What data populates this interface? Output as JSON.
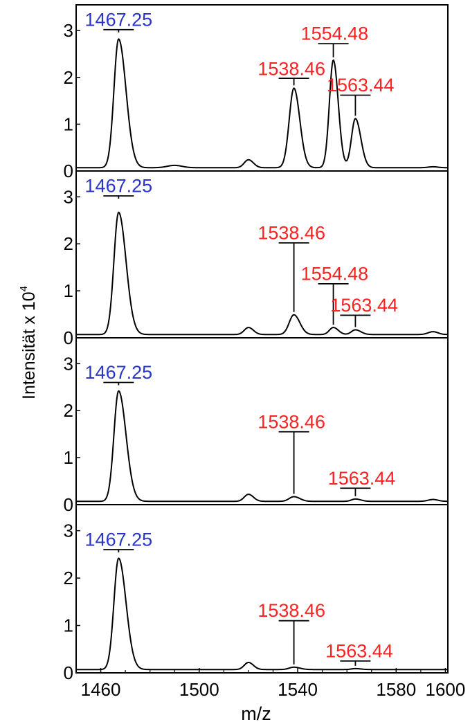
{
  "chart_data": {
    "type": "line",
    "xlabel": "m/z",
    "ylabel": "Intensität x 10⁴",
    "ylabel_main": "Intensität x 10",
    "ylabel_exp": "4",
    "xlim": [
      1450,
      1601
    ],
    "ylim": [
      0,
      3.55
    ],
    "x_ticks": [
      1460,
      1500,
      1540,
      1580,
      1600
    ],
    "y_ticks": [
      0,
      1,
      2,
      3
    ],
    "colors": {
      "reference": "#2a36c8",
      "peak_label": "#ff2222",
      "trace": "#000000"
    },
    "peak_shapes": {
      "1467.25": {
        "sl": 1.9,
        "sr": 3.0
      },
      "1490": {
        "sl": 3.0,
        "sr": 3.0
      },
      "1520": {
        "sl": 1.7,
        "sr": 2.0
      },
      "1538.46": {
        "sl": 1.9,
        "sr": 2.4
      },
      "1554.48": {
        "sl": 1.6,
        "sr": 2.0
      },
      "1563.44": {
        "sl": 1.6,
        "sr": 2.2
      },
      "1595": {
        "sl": 2.0,
        "sr": 2.0
      }
    },
    "panels": [
      {
        "baseline": 0.07,
        "peaks": [
          {
            "x": 1467.25,
            "y": 2.75
          },
          {
            "x": 1490,
            "y": 0.05
          },
          {
            "x": 1520,
            "y": 0.17
          },
          {
            "x": 1538.46,
            "y": 1.7
          },
          {
            "x": 1554.48,
            "y": 2.3
          },
          {
            "x": 1563.44,
            "y": 1.05
          },
          {
            "x": 1595,
            "y": 0.02
          }
        ],
        "labels": [
          {
            "text": "1467.25",
            "series": "reference",
            "x": 1467.25,
            "tick_y": 3.02,
            "text_x": 1467.25,
            "text_y": 3.1
          },
          {
            "text": "1538.46",
            "series": "peak",
            "x": 1538.46,
            "tick_y": 1.98,
            "text_x": 1537.5,
            "text_y": 2.05
          },
          {
            "text": "1554.48",
            "series": "peak",
            "x": 1554.48,
            "tick_y": 2.72,
            "text_x": 1555,
            "text_y": 2.8
          },
          {
            "text": "1563.44",
            "series": "peak",
            "x": 1563.44,
            "tick_y": 1.62,
            "text_x": 1565.5,
            "text_y": 1.7
          }
        ]
      },
      {
        "baseline": 0.07,
        "peaks": [
          {
            "x": 1467.25,
            "y": 2.6
          },
          {
            "x": 1520,
            "y": 0.15
          },
          {
            "x": 1538.46,
            "y": 0.42
          },
          {
            "x": 1554.48,
            "y": 0.15
          },
          {
            "x": 1563.44,
            "y": 0.1
          },
          {
            "x": 1595,
            "y": 0.06
          }
        ],
        "labels": [
          {
            "text": "1467.25",
            "series": "reference",
            "x": 1467.25,
            "tick_y": 3.02,
            "text_x": 1467.25,
            "text_y": 3.1
          },
          {
            "text": "1538.46",
            "series": "peak",
            "x": 1538.46,
            "tick_y": 2.02,
            "text_x": 1537.5,
            "text_y": 2.1
          },
          {
            "text": "1554.48",
            "series": "peak",
            "x": 1554.48,
            "tick_y": 1.15,
            "text_x": 1555,
            "text_y": 1.23
          },
          {
            "text": "1563.44",
            "series": "peak",
            "x": 1563.44,
            "tick_y": 0.48,
            "text_x": 1567,
            "text_y": 0.56
          }
        ]
      },
      {
        "baseline": 0.07,
        "peaks": [
          {
            "x": 1467.25,
            "y": 2.35
          },
          {
            "x": 1520,
            "y": 0.15
          },
          {
            "x": 1538.46,
            "y": 0.1
          },
          {
            "x": 1563.44,
            "y": 0.05
          },
          {
            "x": 1595,
            "y": 0.04
          }
        ],
        "labels": [
          {
            "text": "1467.25",
            "series": "reference",
            "x": 1467.25,
            "tick_y": 2.6,
            "text_x": 1467.25,
            "text_y": 2.68
          },
          {
            "text": "1538.46",
            "series": "peak",
            "x": 1538.46,
            "tick_y": 1.55,
            "text_x": 1537.5,
            "text_y": 1.63
          },
          {
            "text": "1563.44",
            "series": "peak",
            "x": 1563.44,
            "tick_y": 0.35,
            "text_x": 1566,
            "text_y": 0.43
          }
        ]
      },
      {
        "baseline": 0.07,
        "peaks": [
          {
            "x": 1467.25,
            "y": 2.35
          },
          {
            "x": 1520,
            "y": 0.15
          },
          {
            "x": 1538.46,
            "y": 0.05
          },
          {
            "x": 1563.44,
            "y": 0.02
          }
        ],
        "labels": [
          {
            "text": "1467.25",
            "series": "reference",
            "x": 1467.25,
            "tick_y": 2.6,
            "text_x": 1467.25,
            "text_y": 2.68
          },
          {
            "text": "1538.46",
            "series": "peak",
            "x": 1538.46,
            "tick_y": 1.1,
            "text_x": 1537.5,
            "text_y": 1.18
          },
          {
            "text": "1563.44",
            "series": "peak",
            "x": 1563.44,
            "tick_y": 0.25,
            "text_x": 1565,
            "text_y": 0.33
          }
        ]
      }
    ]
  }
}
